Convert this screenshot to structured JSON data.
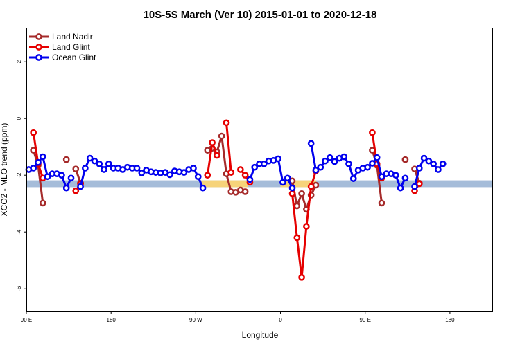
{
  "chart_data": {
    "type": "line",
    "title": "10S-5S March (Ver 10)   2015-01-01 to 2020-12-18",
    "xlabel": "Longitude",
    "ylabel": "XCO2 - MLO trend (ppm)",
    "xlim": [
      0,
      495
    ],
    "ylim": [
      -6.8,
      3.2
    ],
    "x_ticks": [
      {
        "value": 0,
        "label": "90 E"
      },
      {
        "value": 90,
        "label": "180"
      },
      {
        "value": 180,
        "label": "90 W"
      },
      {
        "value": 270,
        "label": "0"
      },
      {
        "value": 360,
        "label": "90 E"
      },
      {
        "value": 450,
        "label": "180"
      }
    ],
    "y_ticks": [
      {
        "value": -6,
        "label": "-6"
      },
      {
        "value": -4,
        "label": "-4"
      },
      {
        "value": -2,
        "label": "-2"
      },
      {
        "value": 0,
        "label": "0"
      },
      {
        "value": 2,
        "label": "2"
      }
    ],
    "grid": false,
    "legend_position": "top-left",
    "reference_band": {
      "y_min": -2.42,
      "y_max": -2.18,
      "color": "#a5bcd9"
    },
    "highlight_band": {
      "y_min": -2.42,
      "y_max": -2.18,
      "color": "#f6d37a",
      "x_ranges": [
        [
          186,
          235
        ],
        [
          270,
          308
        ]
      ]
    },
    "series": [
      {
        "name": "Land Nadir",
        "color": "#a52a2a",
        "points": [
          [
            7.5,
            -1.12
          ],
          [
            12.5,
            -1.65
          ],
          [
            17.5,
            -2.98
          ],
          [
            42.5,
            -1.45
          ],
          [
            52.5,
            -1.78
          ],
          [
            57.5,
            -2.28
          ],
          [
            192.5,
            -1.12
          ],
          [
            197.5,
            -1.05
          ],
          [
            202.5,
            -1.18
          ],
          [
            207.5,
            -0.62
          ],
          [
            212.5,
            -1.95
          ],
          [
            217.5,
            -2.58
          ],
          [
            222.5,
            -2.6
          ],
          [
            227.5,
            -2.52
          ],
          [
            232.5,
            -2.58
          ],
          [
            282.5,
            -2.2
          ],
          [
            287.5,
            -3.08
          ],
          [
            292.5,
            -2.65
          ],
          [
            297.5,
            -3.2
          ],
          [
            302.5,
            -2.7
          ],
          [
            307.5,
            -2.35
          ],
          [
            367.5,
            -1.12
          ],
          [
            372.5,
            -1.65
          ],
          [
            377.5,
            -2.98
          ],
          [
            402.5,
            -1.45
          ],
          [
            412.5,
            -1.78
          ],
          [
            417.5,
            -2.28
          ]
        ]
      },
      {
        "name": "Land Glint",
        "color": "#e60000",
        "points": [
          [
            7.5,
            -0.5
          ],
          [
            12.5,
            -1.6
          ],
          [
            17.5,
            -2.1
          ],
          [
            52.5,
            -2.55
          ],
          [
            57.5,
            -2.3
          ],
          [
            192.5,
            -2.0
          ],
          [
            197.5,
            -0.85
          ],
          [
            202.5,
            -1.3
          ],
          [
            212.5,
            -0.15
          ],
          [
            217.5,
            -1.9
          ],
          [
            227.5,
            -1.8
          ],
          [
            232.5,
            -2.0
          ],
          [
            237.5,
            -2.25
          ],
          [
            282.5,
            -2.65
          ],
          [
            287.5,
            -4.2
          ],
          [
            292.5,
            -5.6
          ],
          [
            297.5,
            -3.8
          ],
          [
            302.5,
            -2.4
          ],
          [
            307.5,
            -1.85
          ],
          [
            367.5,
            -0.5
          ],
          [
            372.5,
            -1.6
          ],
          [
            377.5,
            -2.1
          ],
          [
            412.5,
            -2.55
          ],
          [
            417.5,
            -2.3
          ]
        ]
      },
      {
        "name": "Ocean Glint",
        "color": "#0000ee",
        "points": [
          [
            2.5,
            -1.8
          ],
          [
            7.5,
            -1.75
          ],
          [
            12.5,
            -1.55
          ],
          [
            17.5,
            -1.35
          ],
          [
            22.5,
            -2.05
          ],
          [
            27.5,
            -1.95
          ],
          [
            32.5,
            -1.95
          ],
          [
            37.5,
            -2.0
          ],
          [
            42.5,
            -2.45
          ],
          [
            47.5,
            -2.1
          ],
          [
            57.5,
            -2.4
          ],
          [
            62.5,
            -1.75
          ],
          [
            67.5,
            -1.4
          ],
          [
            72.5,
            -1.5
          ],
          [
            77.5,
            -1.6
          ],
          [
            82.5,
            -1.8
          ],
          [
            87.5,
            -1.6
          ],
          [
            92.5,
            -1.75
          ],
          [
            97.5,
            -1.75
          ],
          [
            102.5,
            -1.8
          ],
          [
            107.5,
            -1.72
          ],
          [
            112.5,
            -1.75
          ],
          [
            117.5,
            -1.75
          ],
          [
            122.5,
            -1.92
          ],
          [
            127.5,
            -1.82
          ],
          [
            132.5,
            -1.88
          ],
          [
            137.5,
            -1.9
          ],
          [
            142.5,
            -1.92
          ],
          [
            147.5,
            -1.9
          ],
          [
            152.5,
            -1.98
          ],
          [
            157.5,
            -1.85
          ],
          [
            162.5,
            -1.88
          ],
          [
            167.5,
            -1.9
          ],
          [
            172.5,
            -1.8
          ],
          [
            177.5,
            -1.75
          ],
          [
            182.5,
            -2.05
          ],
          [
            187.5,
            -2.45
          ],
          [
            237.5,
            -2.15
          ],
          [
            242.5,
            -1.72
          ],
          [
            247.5,
            -1.6
          ],
          [
            252.5,
            -1.6
          ],
          [
            257.5,
            -1.5
          ],
          [
            262.5,
            -1.48
          ],
          [
            267.5,
            -1.42
          ],
          [
            272.5,
            -2.25
          ],
          [
            277.5,
            -2.1
          ],
          [
            282.5,
            -2.45
          ],
          [
            302.5,
            -0.88
          ],
          [
            307.5,
            -1.82
          ],
          [
            312.5,
            -1.72
          ],
          [
            317.5,
            -1.5
          ],
          [
            322.5,
            -1.38
          ],
          [
            327.5,
            -1.52
          ],
          [
            332.5,
            -1.4
          ],
          [
            337.5,
            -1.35
          ],
          [
            342.5,
            -1.6
          ],
          [
            347.5,
            -2.12
          ],
          [
            352.5,
            -1.82
          ],
          [
            357.5,
            -1.75
          ],
          [
            362.5,
            -1.72
          ],
          [
            367.5,
            -1.58
          ],
          [
            372.5,
            -1.38
          ],
          [
            377.5,
            -2.05
          ],
          [
            382.5,
            -1.95
          ],
          [
            387.5,
            -1.95
          ],
          [
            392.5,
            -2.0
          ],
          [
            397.5,
            -2.45
          ],
          [
            402.5,
            -2.1
          ],
          [
            412.5,
            -2.4
          ],
          [
            417.5,
            -1.75
          ],
          [
            422.5,
            -1.4
          ],
          [
            427.5,
            -1.5
          ],
          [
            432.5,
            -1.6
          ],
          [
            437.5,
            -1.8
          ],
          [
            442.5,
            -1.6
          ]
        ]
      }
    ]
  }
}
